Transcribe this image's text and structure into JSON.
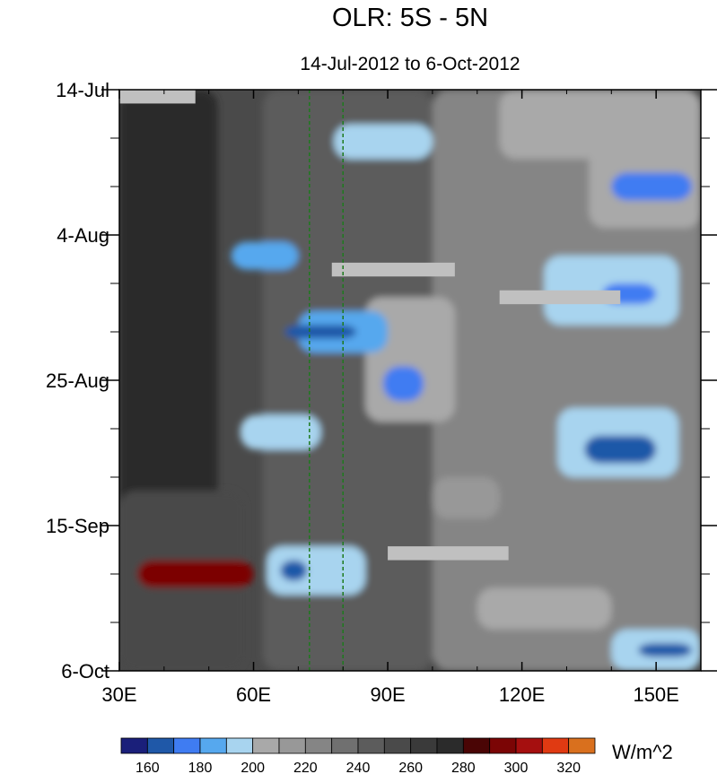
{
  "chart_data": {
    "type": "heatmap",
    "title": "OLR: 5S - 5N",
    "subtitle": "14-Jul-2012 to 6-Oct-2012",
    "x_ticks": [
      {
        "value": 30,
        "label": "30E"
      },
      {
        "value": 60,
        "label": "60E"
      },
      {
        "value": 90,
        "label": "90E"
      },
      {
        "value": 120,
        "label": "120E"
      },
      {
        "value": 150,
        "label": "150E"
      }
    ],
    "x_range": [
      30,
      160
    ],
    "y_ticks": [
      {
        "value": 0,
        "label": "14-Jul"
      },
      {
        "value": 21,
        "label": "4-Aug"
      },
      {
        "value": 42,
        "label": "25-Aug"
      },
      {
        "value": 63,
        "label": "15-Sep"
      },
      {
        "value": 84,
        "label": "6-Oct"
      }
    ],
    "y_range": [
      0,
      84
    ],
    "reference_lines_lon": [
      72.5,
      80
    ],
    "colorbar": {
      "unit": "W/m^2",
      "levels": [
        160,
        170,
        180,
        190,
        200,
        210,
        220,
        230,
        240,
        250,
        260,
        270,
        280,
        290,
        300,
        310,
        320
      ],
      "tick_labels": [
        "160",
        "180",
        "200",
        "220",
        "240",
        "260",
        "280",
        "300",
        "320"
      ],
      "colors": [
        "#1a1f7a",
        "#1f58a8",
        "#3f7cf2",
        "#56a8ee",
        "#a8d4ef",
        "#a9a9a9",
        "#989898",
        "#858585",
        "#707070",
        "#5c5c5c",
        "#4a4a4a",
        "#3a3a3a",
        "#2b2b2b",
        "#4a0505",
        "#7b0505",
        "#a50f0f",
        "#e03a12",
        "#d9701e"
      ]
    },
    "missing_color": "#c0c0c0",
    "missing_segments": [
      {
        "lon": [
          30,
          47
        ],
        "day": [
          0,
          2
        ]
      },
      {
        "lon": [
          77.5,
          105
        ],
        "day": [
          25,
          27
        ]
      },
      {
        "lon": [
          115,
          142
        ],
        "day": [
          29,
          31
        ]
      },
      {
        "lon": [
          90,
          117
        ],
        "day": [
          66,
          68
        ]
      }
    ],
    "regions": [
      {
        "lon": [
          30,
          52
        ],
        "day": [
          0,
          84
        ],
        "level": 275
      },
      {
        "lon": [
          30,
          58
        ],
        "day": [
          58,
          84
        ],
        "level": 255
      },
      {
        "lon": [
          34,
          60
        ],
        "day": [
          68,
          72
        ],
        "level": 295
      },
      {
        "lon": [
          62,
          100
        ],
        "day": [
          0,
          84
        ],
        "level": 245
      },
      {
        "lon": [
          100,
          160
        ],
        "day": [
          0,
          84
        ],
        "level": 225
      },
      {
        "lon": [
          135,
          160
        ],
        "day": [
          0,
          20
        ],
        "level": 205
      },
      {
        "lon": [
          115,
          145
        ],
        "day": [
          0,
          10
        ],
        "level": 205
      },
      {
        "lon": [
          78,
          100
        ],
        "day": [
          5,
          10
        ],
        "level": 195
      },
      {
        "lon": [
          85,
          105
        ],
        "day": [
          30,
          48
        ],
        "level": 200
      },
      {
        "lon": [
          70,
          90
        ],
        "day": [
          32,
          38
        ],
        "level": 185
      },
      {
        "lon": [
          89,
          98
        ],
        "day": [
          40,
          45
        ],
        "level": 175
      },
      {
        "lon": [
          67,
          83
        ],
        "day": [
          34,
          36
        ],
        "level": 165
      },
      {
        "lon": [
          55,
          70
        ],
        "day": [
          22,
          26
        ],
        "level": 185
      },
      {
        "lon": [
          125,
          155
        ],
        "day": [
          24,
          34
        ],
        "level": 195
      },
      {
        "lon": [
          138,
          150
        ],
        "day": [
          28,
          31
        ],
        "level": 175
      },
      {
        "lon": [
          128,
          155
        ],
        "day": [
          46,
          56
        ],
        "level": 195
      },
      {
        "lon": [
          134,
          150
        ],
        "day": [
          50,
          54
        ],
        "level": 165
      },
      {
        "lon": [
          140,
          160
        ],
        "day": [
          78,
          84
        ],
        "level": 195
      },
      {
        "lon": [
          146,
          158
        ],
        "day": [
          80,
          82
        ],
        "level": 165
      },
      {
        "lon": [
          63,
          85
        ],
        "day": [
          66,
          73
        ],
        "level": 190
      },
      {
        "lon": [
          66,
          72
        ],
        "day": [
          68,
          71
        ],
        "level": 165
      },
      {
        "lon": [
          57,
          75
        ],
        "day": [
          47,
          52
        ],
        "level": 195
      },
      {
        "lon": [
          140,
          158
        ],
        "day": [
          12,
          16
        ],
        "level": 170
      },
      {
        "lon": [
          100,
          115
        ],
        "day": [
          56,
          62
        ],
        "level": 210
      },
      {
        "lon": [
          110,
          140
        ],
        "day": [
          72,
          78
        ],
        "level": 205
      }
    ]
  }
}
